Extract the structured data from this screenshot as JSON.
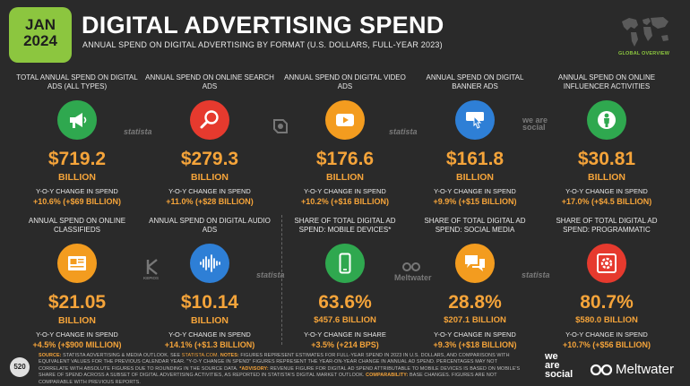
{
  "header": {
    "date_month": "JAN",
    "date_year": "2024",
    "title": "DIGITAL ADVERTISING SPEND",
    "subtitle": "ANNUAL SPEND ON DIGITAL ADVERTISING BY FORMAT (U.S. DOLLARS, FULL-YEAR 2023)",
    "overview_label": "GLOBAL OVERVIEW"
  },
  "row1": [
    {
      "title": "TOTAL ANNUAL SPEND ON DIGITAL ADS (ALL TYPES)",
      "icon": "megaphone-icon",
      "color": "#2fa84f",
      "value": "$719.2",
      "unit": "BILLION",
      "yoy_label": "Y-O-Y CHANGE IN SPEND",
      "yoy_value": "+10.6% (+$69 BILLION)"
    },
    {
      "title": "ANNUAL SPEND ON ONLINE SEARCH ADS",
      "icon": "magnifier-icon",
      "color": "#e63a2e",
      "value": "$279.3",
      "unit": "BILLION",
      "yoy_label": "Y-O-Y CHANGE IN SPEND",
      "yoy_value": "+11.0% (+$28 BILLION)"
    },
    {
      "title": "ANNUAL SPEND ON DIGITAL VIDEO ADS",
      "icon": "play-icon",
      "color": "#f39c1f",
      "value": "$176.6",
      "unit": "BILLION",
      "yoy_label": "Y-O-Y CHANGE IN SPEND",
      "yoy_value": "+10.2% (+$16 BILLION)"
    },
    {
      "title": "ANNUAL SPEND ON DIGITAL BANNER ADS",
      "icon": "banner-click-icon",
      "color": "#2e7fd6",
      "value": "$161.8",
      "unit": "BILLION",
      "yoy_label": "Y-O-Y CHANGE IN SPEND",
      "yoy_value": "+9.9% (+$15 BILLION)"
    },
    {
      "title": "ANNUAL SPEND ON ONLINE INFLUENCER ACTIVITIES",
      "icon": "person-icon",
      "color": "#2fa84f",
      "value": "$30.81",
      "unit": "BILLION",
      "yoy_label": "Y-O-Y CHANGE IN SPEND",
      "yoy_value": "+17.0% (+$4.5 BILLION)"
    }
  ],
  "row2": [
    {
      "title": "ANNUAL SPEND ON ONLINE CLASSIFIEDS",
      "icon": "classified-icon",
      "color": "#f39c1f",
      "value": "$21.05",
      "unit": "BILLION",
      "yoy_label": "Y-O-Y CHANGE IN SPEND",
      "yoy_value": "+4.5% (+$900 MILLION)"
    },
    {
      "title": "ANNUAL SPEND ON DIGITAL AUDIO ADS",
      "icon": "audio-wave-icon",
      "color": "#2e7fd6",
      "value": "$10.14",
      "unit": "BILLION",
      "yoy_label": "Y-O-Y CHANGE IN SPEND",
      "yoy_value": "+14.1% (+$1.3 BILLION)"
    },
    {
      "title": "SHARE OF TOTAL DIGITAL AD SPEND: MOBILE DEVICES*",
      "icon": "smartphone-icon",
      "color": "#2fa84f",
      "value": "63.6%",
      "unit": "$457.6 BILLION",
      "yoy_label": "Y-O-Y CHANGE IN SHARE",
      "yoy_value": "+3.5% (+214 BPS)"
    },
    {
      "title": "SHARE OF TOTAL DIGITAL AD SPEND: SOCIAL MEDIA",
      "icon": "speech-bubbles-icon",
      "color": "#f39c1f",
      "value": "28.8%",
      "unit": "$207.1 BILLION",
      "yoy_label": "Y-O-Y CHANGE IN SPEND",
      "yoy_value": "+9.3% (+$18 BILLION)"
    },
    {
      "title": "SHARE OF TOTAL DIGITAL AD SPEND: PROGRAMMATIC",
      "icon": "gear-icon",
      "color": "#e63a2e",
      "value": "80.7%",
      "unit": "$580.0 BILLION",
      "yoy_label": "Y-O-Y CHANGE IN SPEND",
      "yoy_value": "+10.7% (+$56 BILLION)"
    }
  ],
  "watermarks": {
    "statista": "statista",
    "wearesocial": "we are social",
    "meltwater": "Meltwater",
    "kepios": "KEPIOS"
  },
  "footer": {
    "page_number": "520",
    "source_label": "SOURCE:",
    "source_text": "STATISTA ADVERTISING & MEDIA OUTLOOK. SEE",
    "source_link": "STATISTA.COM",
    "notes_label": "NOTES:",
    "notes_text": "FIGURES REPRESENT ESTIMATES FOR FULL-YEAR SPEND IN 2023 IN U.S. DOLLARS, AND COMPARISONS WITH EQUIVALENT VALUES FOR THE PREVIOUS CALENDAR YEAR. \"Y-O-Y CHANGE IN SPEND\" FIGURES REPRESENT THE YEAR-ON-YEAR CHANGE IN ANNUAL AD SPEND. PERCENTAGES MAY NOT CORRELATE WITH ABSOLUTE FIGURES DUE TO ROUNDING IN THE SOURCE DATA.",
    "advisory_label": "*ADVISORY:",
    "advisory_text": "REVENUE FIGURE FOR DIGITAL AD SPEND ATTRIBUTABLE TO MOBILE DEVICES IS BASED ON MOBILE'S SHARE OF SPEND ACROSS A SUBSET OF DIGITAL ADVERTISING ACTIVITIES, AS REPORTED IN STATISTA'S DIGITAL MARKET OUTLOOK.",
    "comparability_label": "COMPARABILITY:",
    "comparability_text": "BASE CHANGES. FIGURES ARE NOT COMPARABLE WITH PREVIOUS REPORTS.",
    "brand_we": "we",
    "brand_are": "are",
    "brand_social": "social",
    "brand_meltwater": "Meltwater"
  }
}
